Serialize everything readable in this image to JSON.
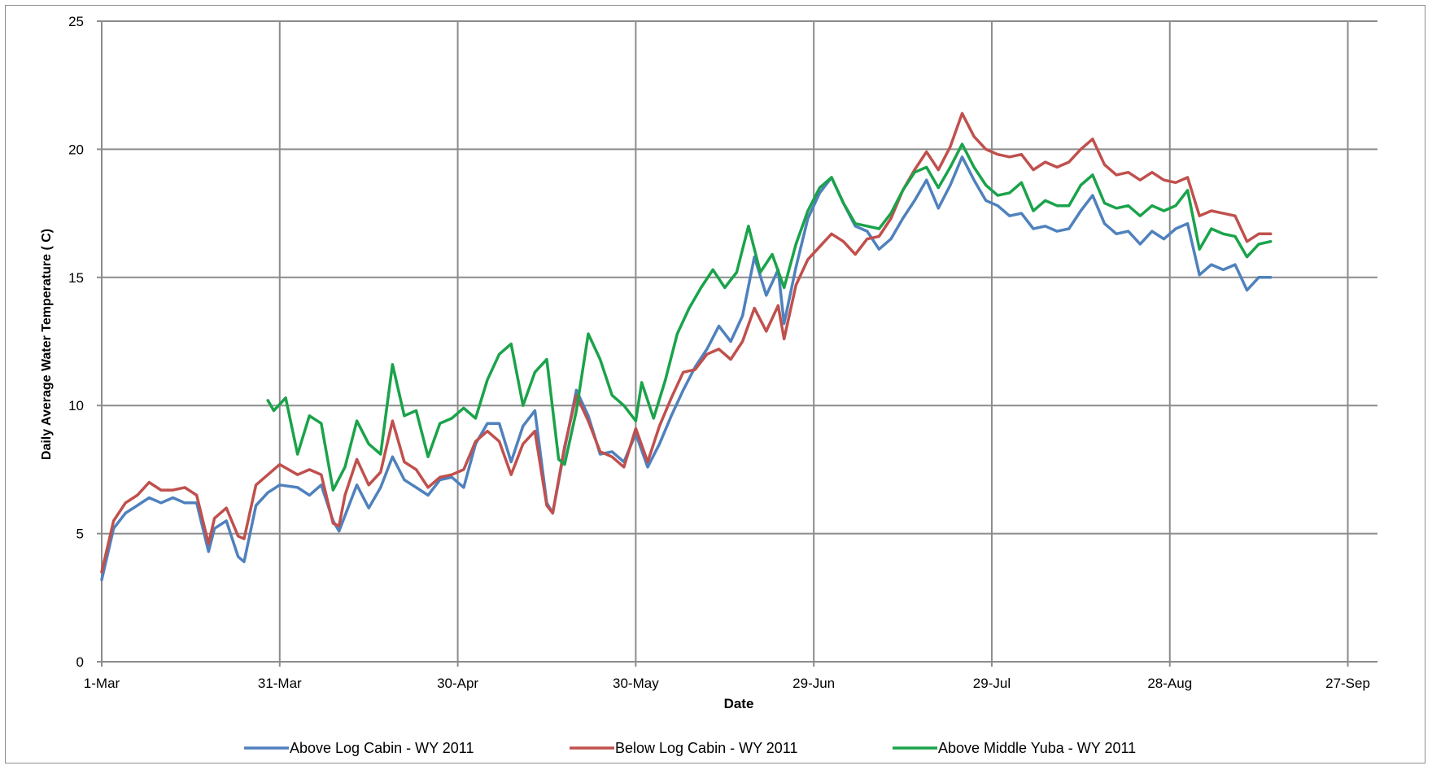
{
  "chart_data": {
    "type": "line",
    "title": "",
    "xlabel": "Date",
    "ylabel": "Daily Average Water Temperature ( C)",
    "ylim": [
      0,
      25
    ],
    "yticks": [
      0,
      5,
      10,
      15,
      20,
      25
    ],
    "xlim": [
      "1-Mar",
      "2-Oct"
    ],
    "xticks": [
      {
        "label": "1-Mar",
        "day": 0
      },
      {
        "label": "31-Mar",
        "day": 30
      },
      {
        "label": "30-Apr",
        "day": 60
      },
      {
        "label": "30-May",
        "day": 90
      },
      {
        "label": "29-Jun",
        "day": 120
      },
      {
        "label": "29-Jul",
        "day": 150
      },
      {
        "label": "28-Aug",
        "day": 180
      },
      {
        "label": "27-Sep",
        "day": 210
      }
    ],
    "grid": true,
    "legend": "bottom",
    "series": [
      {
        "name": "Above Log Cabin - WY 2011",
        "color": "#4f81bd",
        "points": [
          [
            0,
            3.2
          ],
          [
            2,
            5.2
          ],
          [
            4,
            5.8
          ],
          [
            6,
            6.1
          ],
          [
            8,
            6.4
          ],
          [
            10,
            6.2
          ],
          [
            12,
            6.4
          ],
          [
            14,
            6.2
          ],
          [
            16,
            6.2
          ],
          [
            18,
            4.3
          ],
          [
            19,
            5.2
          ],
          [
            21,
            5.5
          ],
          [
            23,
            4.1
          ],
          [
            24,
            3.9
          ],
          [
            26,
            6.1
          ],
          [
            28,
            6.6
          ],
          [
            30,
            6.9
          ],
          [
            33,
            6.8
          ],
          [
            35,
            6.5
          ],
          [
            37,
            6.9
          ],
          [
            39,
            5.5
          ],
          [
            40,
            5.1
          ],
          [
            41,
            5.7
          ],
          [
            43,
            6.9
          ],
          [
            45,
            6.0
          ],
          [
            47,
            6.8
          ],
          [
            49,
            8.0
          ],
          [
            51,
            7.1
          ],
          [
            53,
            6.8
          ],
          [
            55,
            6.5
          ],
          [
            57,
            7.1
          ],
          [
            59,
            7.2
          ],
          [
            61,
            6.8
          ],
          [
            63,
            8.5
          ],
          [
            65,
            9.3
          ],
          [
            67,
            9.3
          ],
          [
            69,
            7.8
          ],
          [
            71,
            9.2
          ],
          [
            73,
            9.8
          ],
          [
            75,
            6.2
          ],
          [
            76,
            5.8
          ],
          [
            78,
            8.3
          ],
          [
            80,
            10.6
          ],
          [
            82,
            9.6
          ],
          [
            84,
            8.1
          ],
          [
            86,
            8.2
          ],
          [
            88,
            7.8
          ],
          [
            90,
            8.9
          ],
          [
            92,
            7.6
          ],
          [
            94,
            8.5
          ],
          [
            96,
            9.6
          ],
          [
            98,
            10.6
          ],
          [
            100,
            11.5
          ],
          [
            102,
            12.2
          ],
          [
            104,
            13.1
          ],
          [
            106,
            12.5
          ],
          [
            108,
            13.5
          ],
          [
            110,
            15.8
          ],
          [
            112,
            14.3
          ],
          [
            114,
            15.3
          ],
          [
            115,
            13.2
          ],
          [
            117,
            15.4
          ],
          [
            119,
            17.3
          ],
          [
            121,
            18.3
          ],
          [
            123,
            18.9
          ],
          [
            125,
            17.9
          ],
          [
            127,
            17.0
          ],
          [
            129,
            16.8
          ],
          [
            131,
            16.1
          ],
          [
            133,
            16.5
          ],
          [
            135,
            17.3
          ],
          [
            137,
            18.0
          ],
          [
            139,
            18.8
          ],
          [
            141,
            17.7
          ],
          [
            143,
            18.6
          ],
          [
            145,
            19.7
          ],
          [
            147,
            18.8
          ],
          [
            149,
            18.0
          ],
          [
            151,
            17.8
          ],
          [
            153,
            17.4
          ],
          [
            155,
            17.5
          ],
          [
            157,
            16.9
          ],
          [
            159,
            17.0
          ],
          [
            161,
            16.8
          ],
          [
            163,
            16.9
          ],
          [
            165,
            17.6
          ],
          [
            167,
            18.2
          ],
          [
            169,
            17.1
          ],
          [
            171,
            16.7
          ],
          [
            173,
            16.8
          ],
          [
            175,
            16.3
          ],
          [
            177,
            16.8
          ],
          [
            179,
            16.5
          ],
          [
            181,
            16.9
          ],
          [
            183,
            17.1
          ],
          [
            185,
            15.1
          ],
          [
            187,
            15.5
          ],
          [
            189,
            15.3
          ],
          [
            191,
            15.5
          ],
          [
            193,
            14.5
          ],
          [
            195,
            15.0
          ],
          [
            197,
            15.0
          ]
        ]
      },
      {
        "name": "Below Log Cabin - WY 2011",
        "color": "#c0504d",
        "points": [
          [
            0,
            3.5
          ],
          [
            2,
            5.5
          ],
          [
            4,
            6.2
          ],
          [
            6,
            6.5
          ],
          [
            8,
            7.0
          ],
          [
            10,
            6.7
          ],
          [
            12,
            6.7
          ],
          [
            14,
            6.8
          ],
          [
            16,
            6.5
          ],
          [
            18,
            4.6
          ],
          [
            19,
            5.6
          ],
          [
            21,
            6.0
          ],
          [
            23,
            4.9
          ],
          [
            24,
            4.8
          ],
          [
            26,
            6.9
          ],
          [
            28,
            7.3
          ],
          [
            30,
            7.7
          ],
          [
            33,
            7.3
          ],
          [
            35,
            7.5
          ],
          [
            37,
            7.3
          ],
          [
            39,
            5.4
          ],
          [
            40,
            5.3
          ],
          [
            41,
            6.5
          ],
          [
            43,
            7.9
          ],
          [
            45,
            6.9
          ],
          [
            47,
            7.4
          ],
          [
            49,
            9.4
          ],
          [
            51,
            7.8
          ],
          [
            53,
            7.5
          ],
          [
            55,
            6.8
          ],
          [
            57,
            7.2
          ],
          [
            59,
            7.3
          ],
          [
            61,
            7.5
          ],
          [
            63,
            8.6
          ],
          [
            65,
            9.0
          ],
          [
            67,
            8.6
          ],
          [
            69,
            7.3
          ],
          [
            71,
            8.5
          ],
          [
            73,
            9.0
          ],
          [
            75,
            6.1
          ],
          [
            76,
            5.8
          ],
          [
            78,
            8.4
          ],
          [
            80,
            10.4
          ],
          [
            82,
            9.4
          ],
          [
            84,
            8.2
          ],
          [
            86,
            8.0
          ],
          [
            88,
            7.6
          ],
          [
            90,
            9.1
          ],
          [
            92,
            7.8
          ],
          [
            94,
            9.2
          ],
          [
            96,
            10.3
          ],
          [
            98,
            11.3
          ],
          [
            100,
            11.4
          ],
          [
            102,
            12.0
          ],
          [
            104,
            12.2
          ],
          [
            106,
            11.8
          ],
          [
            108,
            12.5
          ],
          [
            110,
            13.8
          ],
          [
            112,
            12.9
          ],
          [
            114,
            13.9
          ],
          [
            115,
            12.6
          ],
          [
            117,
            14.7
          ],
          [
            119,
            15.7
          ],
          [
            121,
            16.2
          ],
          [
            123,
            16.7
          ],
          [
            125,
            16.4
          ],
          [
            127,
            15.9
          ],
          [
            129,
            16.5
          ],
          [
            131,
            16.6
          ],
          [
            133,
            17.3
          ],
          [
            135,
            18.4
          ],
          [
            137,
            19.2
          ],
          [
            139,
            19.9
          ],
          [
            141,
            19.2
          ],
          [
            143,
            20.1
          ],
          [
            145,
            21.4
          ],
          [
            147,
            20.5
          ],
          [
            149,
            20.0
          ],
          [
            151,
            19.8
          ],
          [
            153,
            19.7
          ],
          [
            155,
            19.8
          ],
          [
            157,
            19.2
          ],
          [
            159,
            19.5
          ],
          [
            161,
            19.3
          ],
          [
            163,
            19.5
          ],
          [
            165,
            20.0
          ],
          [
            167,
            20.4
          ],
          [
            169,
            19.4
          ],
          [
            171,
            19.0
          ],
          [
            173,
            19.1
          ],
          [
            175,
            18.8
          ],
          [
            177,
            19.1
          ],
          [
            179,
            18.8
          ],
          [
            181,
            18.7
          ],
          [
            183,
            18.9
          ],
          [
            185,
            17.4
          ],
          [
            187,
            17.6
          ],
          [
            189,
            17.5
          ],
          [
            191,
            17.4
          ],
          [
            193,
            16.4
          ],
          [
            195,
            16.7
          ],
          [
            197,
            16.7
          ]
        ]
      },
      {
        "name": "Above Middle Yuba - WY 2011",
        "color": "#1aa34a",
        "points": [
          [
            28,
            10.2
          ],
          [
            29,
            9.8
          ],
          [
            31,
            10.3
          ],
          [
            33,
            8.1
          ],
          [
            35,
            9.6
          ],
          [
            37,
            9.3
          ],
          [
            39,
            6.7
          ],
          [
            41,
            7.6
          ],
          [
            43,
            9.4
          ],
          [
            45,
            8.5
          ],
          [
            47,
            8.1
          ],
          [
            49,
            11.6
          ],
          [
            51,
            9.6
          ],
          [
            53,
            9.8
          ],
          [
            55,
            8.0
          ],
          [
            57,
            9.3
          ],
          [
            59,
            9.5
          ],
          [
            61,
            9.9
          ],
          [
            63,
            9.5
          ],
          [
            65,
            11.0
          ],
          [
            67,
            12.0
          ],
          [
            69,
            12.4
          ],
          [
            71,
            10.0
          ],
          [
            73,
            11.3
          ],
          [
            75,
            11.8
          ],
          [
            77,
            7.9
          ],
          [
            78,
            7.7
          ],
          [
            80,
            9.8
          ],
          [
            82,
            12.8
          ],
          [
            84,
            11.8
          ],
          [
            86,
            10.4
          ],
          [
            88,
            10.0
          ],
          [
            90,
            9.4
          ],
          [
            91,
            10.9
          ],
          [
            93,
            9.5
          ],
          [
            95,
            11.0
          ],
          [
            97,
            12.8
          ],
          [
            99,
            13.8
          ],
          [
            101,
            14.6
          ],
          [
            103,
            15.3
          ],
          [
            105,
            14.6
          ],
          [
            107,
            15.2
          ],
          [
            109,
            17.0
          ],
          [
            111,
            15.2
          ],
          [
            113,
            15.9
          ],
          [
            115,
            14.6
          ],
          [
            117,
            16.3
          ],
          [
            119,
            17.6
          ],
          [
            121,
            18.5
          ],
          [
            123,
            18.9
          ],
          [
            125,
            17.9
          ],
          [
            127,
            17.1
          ],
          [
            129,
            17.0
          ],
          [
            131,
            16.9
          ],
          [
            133,
            17.5
          ],
          [
            135,
            18.4
          ],
          [
            137,
            19.1
          ],
          [
            139,
            19.3
          ],
          [
            141,
            18.5
          ],
          [
            143,
            19.3
          ],
          [
            145,
            20.2
          ],
          [
            147,
            19.3
          ],
          [
            149,
            18.6
          ],
          [
            151,
            18.2
          ],
          [
            153,
            18.3
          ],
          [
            155,
            18.7
          ],
          [
            157,
            17.6
          ],
          [
            159,
            18.0
          ],
          [
            161,
            17.8
          ],
          [
            163,
            17.8
          ],
          [
            165,
            18.6
          ],
          [
            167,
            19.0
          ],
          [
            169,
            17.9
          ],
          [
            171,
            17.7
          ],
          [
            173,
            17.8
          ],
          [
            175,
            17.4
          ],
          [
            177,
            17.8
          ],
          [
            179,
            17.6
          ],
          [
            181,
            17.8
          ],
          [
            183,
            18.4
          ],
          [
            185,
            16.1
          ],
          [
            187,
            16.9
          ],
          [
            189,
            16.7
          ],
          [
            191,
            16.6
          ],
          [
            193,
            15.8
          ],
          [
            195,
            16.3
          ],
          [
            197,
            16.4
          ]
        ]
      }
    ]
  }
}
